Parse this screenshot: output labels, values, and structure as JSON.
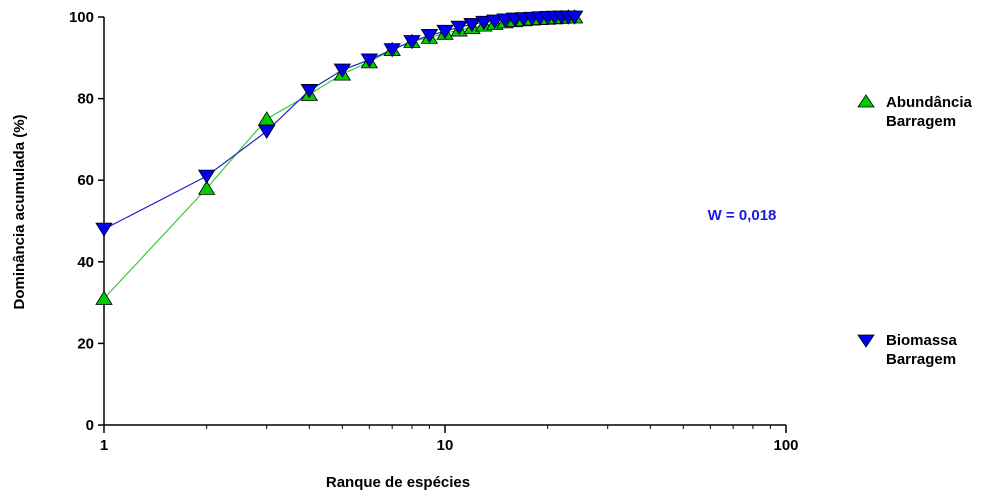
{
  "chart_data": {
    "type": "line",
    "xlabel": "Ranque de espécies",
    "ylabel": "Dominância acumulada (%)",
    "x_scale": "log",
    "xlim": [
      1,
      100
    ],
    "ylim": [
      0,
      100
    ],
    "x_ticks": [
      1,
      10,
      100
    ],
    "x_tick_labels": [
      "1",
      "10",
      "100"
    ],
    "y_ticks": [
      0,
      20,
      40,
      60,
      80,
      100
    ],
    "y_tick_labels": [
      "0",
      "20",
      "40",
      "60",
      "80",
      "100"
    ],
    "grid": false,
    "legend_position": "right",
    "annotation": "W = 0,018",
    "annotation_color": "#1a1adb",
    "series": [
      {
        "name_lines": [
          "Abundância",
          "Barragem"
        ],
        "marker": "triangle-up",
        "color": "#00cc00",
        "line_color": "#33cc33",
        "x": [
          1,
          2,
          3,
          4,
          5,
          6,
          7,
          8,
          9,
          10,
          11,
          12,
          13,
          14,
          15,
          16,
          17,
          18,
          19,
          20,
          21,
          22,
          23,
          24
        ],
        "values": [
          31,
          58,
          75,
          81,
          86,
          89,
          92,
          94,
          95,
          96,
          96.8,
          97.4,
          98,
          98.4,
          98.8,
          99.1,
          99.3,
          99.5,
          99.6,
          99.7,
          99.8,
          99.9,
          100,
          100
        ]
      },
      {
        "name_lines": [
          "Biomassa",
          "Barragem"
        ],
        "marker": "triangle-down",
        "color": "#0000ee",
        "line_color": "#2222cc",
        "x": [
          1,
          2,
          3,
          4,
          5,
          6,
          7,
          8,
          9,
          10,
          11,
          12,
          13,
          14,
          15,
          16,
          17,
          18,
          19,
          20,
          21,
          22,
          23,
          24
        ],
        "values": [
          48,
          61,
          72,
          82,
          87,
          89.5,
          92,
          94,
          95.5,
          96.5,
          97.5,
          98.2,
          98.7,
          99,
          99.3,
          99.5,
          99.6,
          99.7,
          99.8,
          99.9,
          99.95,
          100,
          100,
          100
        ]
      }
    ]
  }
}
